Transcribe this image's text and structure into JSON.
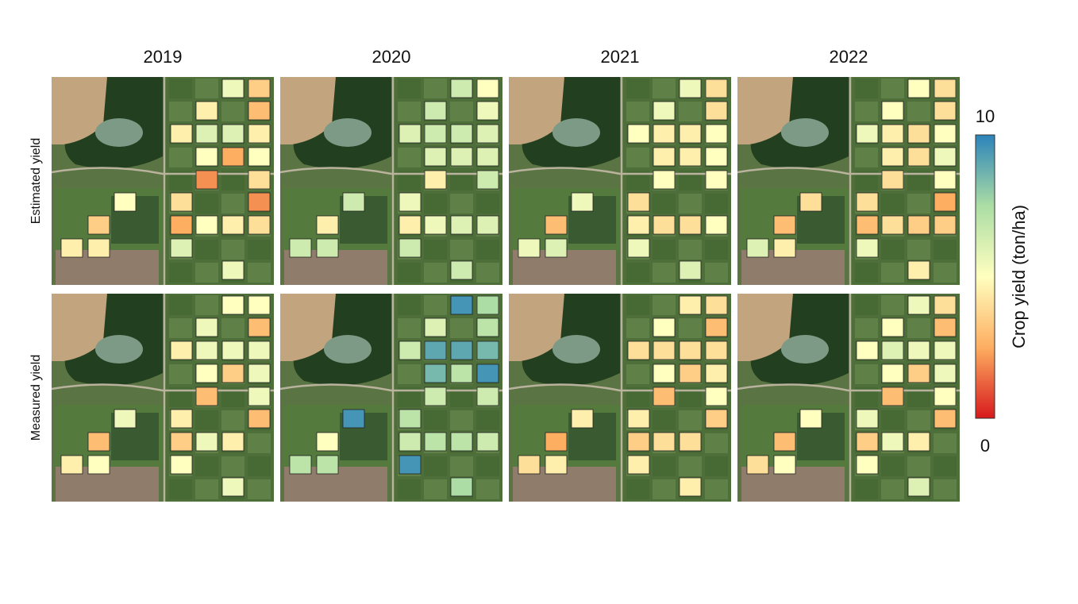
{
  "columns": [
    "2019",
    "2020",
    "2021",
    "2022"
  ],
  "rows": [
    "Estimated yield",
    "Measured yield"
  ],
  "colorbar": {
    "label": "Crop yield (ton/ha)",
    "lim": [
      0,
      10
    ],
    "ticks": [
      0,
      10
    ]
  },
  "yield_maps": [
    [
      [
        5.5,
        3.5,
        4.5,
        3,
        4.5,
        6,
        6,
        4.5,
        5,
        2.5,
        5,
        2,
        4,
        4,
        2,
        2.5,
        5,
        4.5,
        4,
        6,
        5.5,
        5,
        3.5,
        4.5,
        4.5
      ],
      [
        6.5,
        5,
        6.5,
        5.5,
        6,
        6.5,
        6.5,
        6,
        6,
        6,
        6,
        4.5,
        6.5,
        5.5,
        null,
        4.5,
        5.5,
        6,
        6,
        6.5,
        6.5,
        6.5,
        4.5,
        6.5,
        6.5
      ],
      [
        5.5,
        4,
        5.5,
        4,
        5,
        4.5,
        4.5,
        5,
        4.5,
        4.5,
        5,
        5,
        5,
        4,
        null,
        4.5,
        4,
        4,
        5,
        5.5,
        6,
        5.5,
        3,
        5.5,
        6
      ],
      [
        5,
        4,
        5,
        4,
        5.5,
        4.5,
        4,
        5,
        4.5,
        4,
        5.5,
        4,
        5,
        4,
        2.5,
        3,
        4,
        3.5,
        3.5,
        5.5,
        4.5,
        4,
        3,
        6,
        4.5
      ]
    ],
    [
      [
        5,
        5,
        5.5,
        3,
        4.5,
        5.5,
        5.5,
        5.5,
        5,
        3.5,
        5.5,
        3,
        5.5,
        4.5,
        3,
        3.5,
        5.5,
        4.5,
        null,
        5,
        5.5,
        5.5,
        3,
        4.5,
        5
      ],
      [
        9.5,
        7.5,
        6,
        7,
        6.5,
        9,
        9,
        8.5,
        8.5,
        7,
        9.5,
        6.5,
        6.5,
        7,
        null,
        6.5,
        7,
        7,
        6.5,
        9.5,
        7.5,
        9.5,
        5,
        7,
        7
      ],
      [
        4.5,
        4,
        5,
        3,
        4,
        4,
        4,
        4,
        5,
        3.5,
        4.5,
        3,
        5,
        4.5,
        3.5,
        3.5,
        4,
        4,
        null,
        4.5,
        4.5,
        4.5,
        2.5,
        4,
        4.5
      ],
      [
        5.5,
        4,
        5,
        3,
        5,
        6,
        5.5,
        5.5,
        5,
        3.5,
        5.5,
        3,
        5,
        5.5,
        3,
        3.5,
        5.5,
        4.5,
        null,
        5,
        6,
        5,
        3,
        4,
        5
      ]
    ]
  ]
}
